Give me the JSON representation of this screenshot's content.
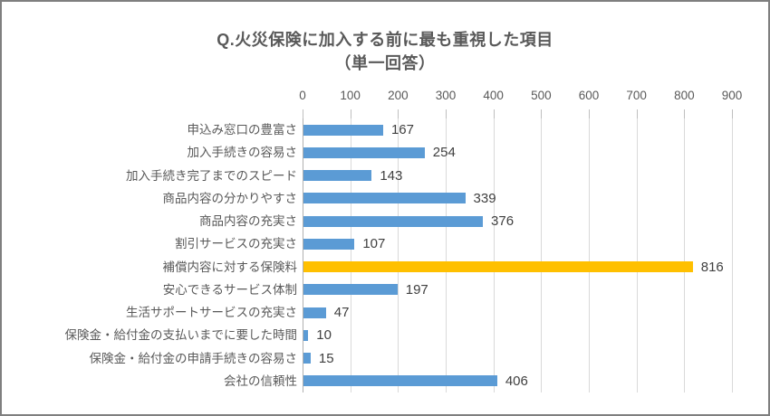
{
  "chart_data": {
    "type": "bar",
    "orientation": "horizontal",
    "title": "Q.火災保険に加入する前に最も重視した項目",
    "subtitle": "（単一回答）",
    "categories": [
      "申込み窓口の豊富さ",
      "加入手続きの容易さ",
      "加入手続き完了までのスピード",
      "商品内容の分かりやすさ",
      "商品内容の充実さ",
      "割引サービスの充実さ",
      "補償内容に対する保険料",
      "安心できるサービス体制",
      "生活サポートサービスの充実さ",
      "保険金・給付金の支払いまでに要した時間",
      "保険金・給付金の申請手続きの容易さ",
      "会社の信頼性"
    ],
    "values": [
      167,
      254,
      143,
      339,
      376,
      107,
      816,
      197,
      47,
      10,
      15,
      406
    ],
    "highlight_index": 6,
    "xlim": [
      0,
      900
    ],
    "xticks": [
      0,
      100,
      200,
      300,
      400,
      500,
      600,
      700,
      800,
      900
    ],
    "grid": true,
    "data_labels": true,
    "legend": "none"
  },
  "colors": {
    "bar": "#5b9bd5",
    "highlight": "#ffc000",
    "gridline": "#d9d9d9",
    "axis": "#b0b0b0",
    "tick": "#bfbfbf",
    "title_text": "#595959",
    "category_text": "#595959",
    "value_text": "#404040",
    "border": "#7f7f7f"
  }
}
